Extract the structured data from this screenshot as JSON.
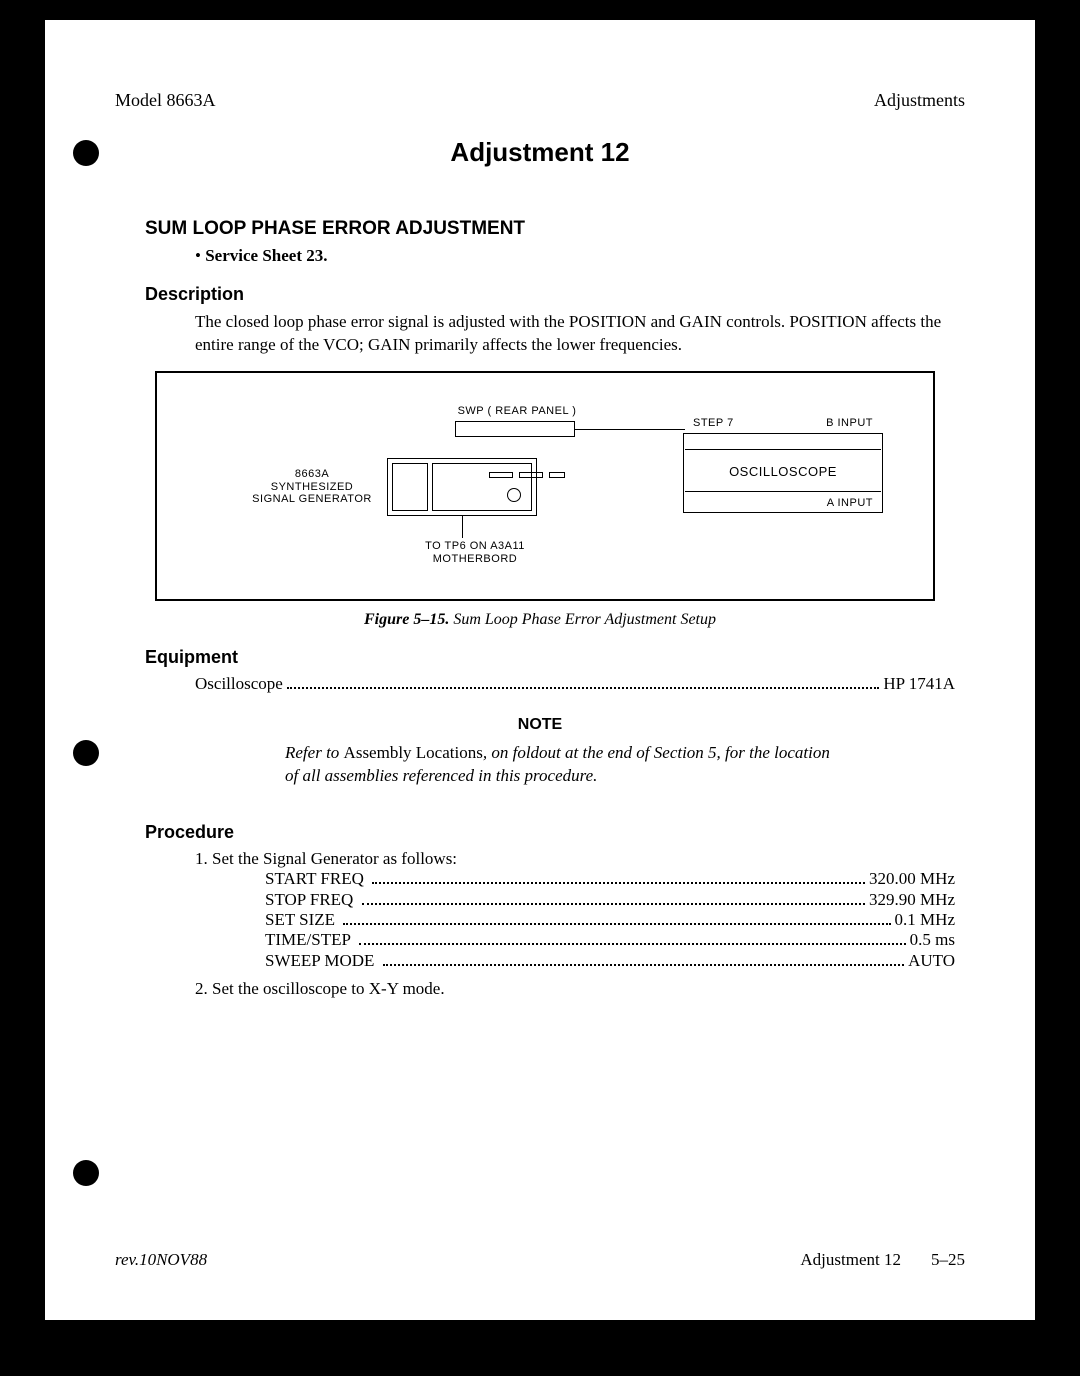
{
  "header": {
    "model": "Model 8663A",
    "section": "Adjustments"
  },
  "title": "Adjustment 12",
  "sum_loop": {
    "heading": "SUM LOOP PHASE ERROR ADJUSTMENT",
    "service_sheet": "Service Sheet 23."
  },
  "description": {
    "heading": "Description",
    "text": "The closed loop phase error signal is adjusted with the POSITION and GAIN controls. POSITION affects the entire range of the VCO; GAIN primarily affects the lower frequencies."
  },
  "figure": {
    "swp_label": "SWP ( REAR PANEL )",
    "sg_label_l1": "8663A",
    "sg_label_l2": "SYNTHESIZED",
    "sg_label_l3": "SIGNAL GENERATOR",
    "tp_label_l1": "TO TP6 ON A3A11",
    "tp_label_l2": "MOTHERBORD",
    "scope_step": "STEP 7",
    "scope_binput": "B INPUT",
    "scope_name": "OSCILLOSCOPE",
    "scope_ainput": "A INPUT",
    "caption_bold": "Figure 5–15.",
    "caption_ital": " Sum Loop Phase Error Adjustment Setup"
  },
  "equipment": {
    "heading": "Equipment",
    "item": "Oscilloscope",
    "value": "HP 1741A"
  },
  "note": {
    "heading": "NOTE",
    "pre": "Refer to ",
    "roman": "Assembly Locations",
    "post": ", on foldout at the end of Section 5, for the location of all assemblies referenced in this procedure."
  },
  "procedure": {
    "heading": "Procedure",
    "step1": "1. Set the Signal Generator as follows:",
    "settings": [
      {
        "label": "START FREQ",
        "value": "320.00 MHz"
      },
      {
        "label": "STOP FREQ",
        "value": "329.90 MHz"
      },
      {
        "label": "SET SIZE",
        "value": "0.1 MHz"
      },
      {
        "label": "TIME/STEP",
        "value": "0.5 ms"
      },
      {
        "label": "SWEEP MODE",
        "value": "AUTO"
      }
    ],
    "step2": "2. Set the oscilloscope to X-Y mode."
  },
  "footer": {
    "rev": "rev.10NOV88",
    "adj": "Adjustment 12",
    "page": "5–25"
  },
  "colors": {
    "page_bg": "#ffffff",
    "frame_bg": "#000000",
    "text": "#000000"
  },
  "fonts": {
    "body": "Times New Roman, serif",
    "heading": "Arial, Helvetica, sans-serif",
    "title_size_pt": 20,
    "heading_size_pt": 14,
    "body_size_pt": 13
  }
}
